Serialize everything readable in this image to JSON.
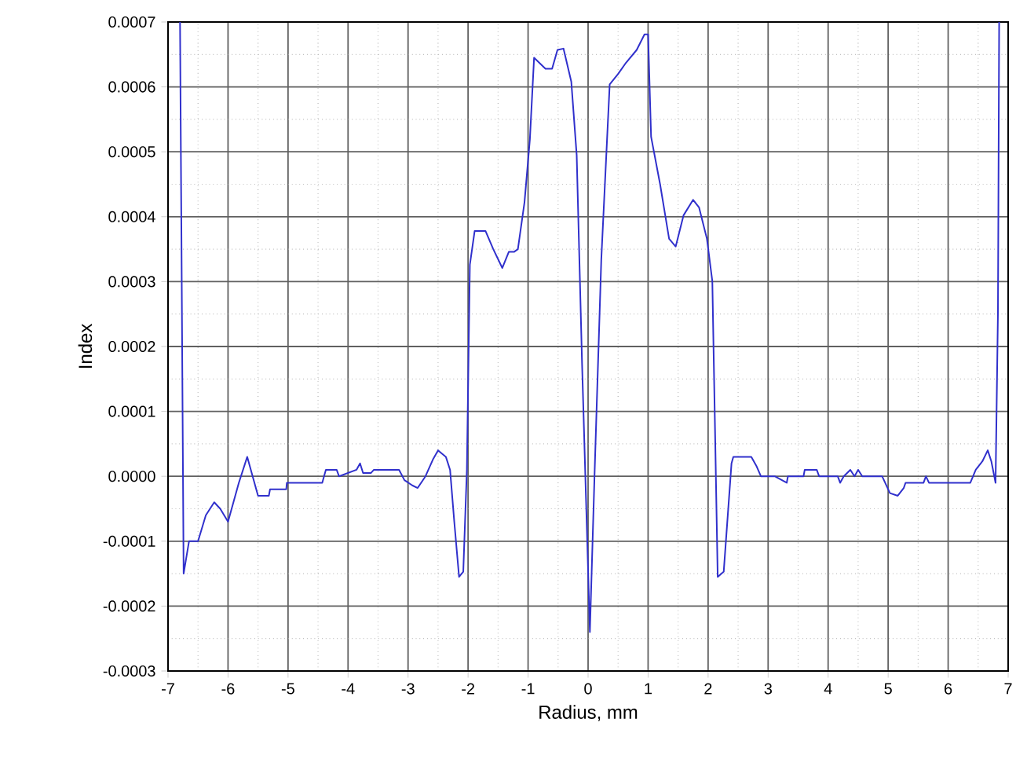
{
  "chart_data": {
    "type": "line",
    "xlabel": "Radius, mm",
    "ylabel": "Index",
    "xlim": [
      -7,
      7
    ],
    "ylim": [
      -0.0003,
      0.0007
    ],
    "xticks": [
      -7,
      -6,
      -5,
      -4,
      -3,
      -2,
      -1,
      0,
      1,
      2,
      3,
      4,
      5,
      6,
      7
    ],
    "yticks": [
      -0.0003,
      -0.0002,
      -0.0001,
      {
        "value": 0,
        "label": "0.0000"
      },
      0.0001,
      0.0002,
      0.0003,
      0.0004,
      0.0005,
      0.0006,
      0.0007
    ],
    "grid": true,
    "marker": "none",
    "line_style": "solid",
    "series": [
      {
        "color": "#3030cc",
        "x": [
          -6.8,
          -6.74,
          -6.65,
          -6.5,
          -6.37,
          -6.23,
          -6.13,
          -6.0,
          -5.82,
          -5.68,
          -5.5,
          -5.32,
          -5.3,
          -5.03,
          -5.02,
          -4.43,
          -4.37,
          -4.19,
          -4.15,
          -3.86,
          -3.8,
          -3.75,
          -3.62,
          -3.57,
          -3.15,
          -3.06,
          -2.93,
          -2.84,
          -2.71,
          -2.58,
          -2.5,
          -2.37,
          -2.3,
          -2.23,
          -2.15,
          -2.08,
          -2.02,
          -1.97,
          -1.89,
          -1.71,
          -1.58,
          -1.43,
          -1.32,
          -1.23,
          -1.17,
          -1.06,
          -0.97,
          -0.9,
          -0.71,
          -0.6,
          -0.51,
          -0.41,
          -0.28,
          -0.19,
          -0.1,
          0.03,
          0.11,
          0.22,
          0.36,
          0.5,
          0.63,
          0.81,
          0.94,
          1.0,
          1.05,
          1.2,
          1.35,
          1.46,
          1.59,
          1.75,
          1.85,
          1.98,
          2.07,
          2.16,
          2.26,
          2.39,
          2.42,
          2.72,
          2.81,
          2.88,
          3.11,
          3.31,
          3.33,
          3.59,
          3.61,
          3.81,
          3.85,
          4.16,
          4.2,
          4.26,
          4.37,
          4.44,
          4.5,
          4.57,
          4.9,
          5.03,
          5.16,
          5.26,
          5.29,
          5.59,
          5.63,
          5.68,
          6.37,
          6.46,
          6.57,
          6.66,
          6.72,
          6.79,
          6.83,
          6.85
        ],
        "values": [
          0.0007,
          -0.00015,
          -0.0001,
          -0.0001,
          -6e-05,
          -4e-05,
          -5e-05,
          -7e-05,
          -1e-05,
          3e-05,
          -3e-05,
          -3e-05,
          -2e-05,
          -2e-05,
          -1e-05,
          -1e-05,
          1e-05,
          1e-05,
          0,
          1e-05,
          2e-05,
          5e-06,
          5e-06,
          1e-05,
          1e-05,
          -6e-06,
          -1.4e-05,
          -1.8e-05,
          0,
          2.7e-05,
          4e-05,
          3e-05,
          1e-05,
          -7e-05,
          -0.000155,
          -0.000147,
          1e-05,
          0.000326,
          0.000378,
          0.000378,
          0.00035,
          0.000321,
          0.000346,
          0.000346,
          0.00035,
          0.000422,
          0.000519,
          0.000645,
          0.000628,
          0.000628,
          0.000657,
          0.000659,
          0.000608,
          0.000495,
          0.000172,
          -0.00024,
          1e-05,
          0.000334,
          0.000604,
          0.00062,
          0.000637,
          0.000657,
          0.000681,
          0.000681,
          0.000523,
          0.00045,
          0.000366,
          0.000354,
          0.000402,
          0.000426,
          0.000414,
          0.000366,
          0.000301,
          -0.000155,
          -0.000147,
          2e-05,
          3e-05,
          3e-05,
          1.5e-05,
          0,
          0,
          -1e-05,
          0,
          0,
          1e-05,
          1e-05,
          0,
          0,
          -1e-05,
          0,
          1e-05,
          0,
          1e-05,
          0,
          0,
          -2.6e-05,
          -3e-05,
          -1.8e-05,
          -1e-05,
          -1e-05,
          0,
          -1e-05,
          -1e-05,
          1e-05,
          2.3e-05,
          4e-05,
          2.3e-05,
          -1e-05,
          0.000253,
          0.0007
        ]
      }
    ]
  }
}
